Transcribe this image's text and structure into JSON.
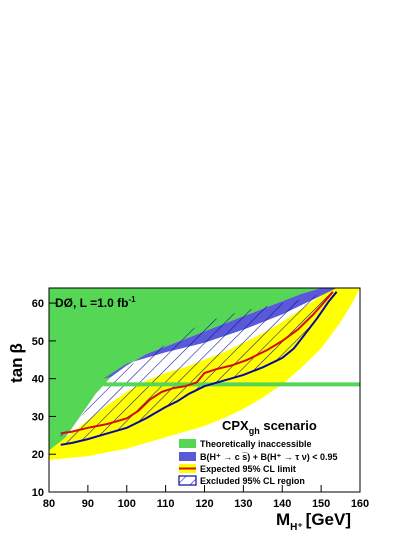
{
  "chart_data": {
    "type": "area",
    "xlabel_main": "M",
    "xlabel_sub": "H⁺",
    "xlabel_unit": "[GeV]",
    "ylabel_main": "tan",
    "ylabel_greek": "β",
    "xlim": [
      80,
      160
    ],
    "ylim": [
      10,
      64
    ],
    "x_ticks": [
      80,
      90,
      100,
      110,
      120,
      130,
      140,
      150,
      160
    ],
    "y_ticks": [
      10,
      20,
      30,
      40,
      50,
      60
    ],
    "annotation_main": "DØ, L =1.0 fb",
    "annotation_sup": "-1",
    "scenario_main": "CPX",
    "scenario_sub": "gh",
    "scenario_rest": " scenario",
    "colors": {
      "theory": "#55d655",
      "branching": "#5a5ad8",
      "yellow": "#ffff00",
      "expected": "#d01010",
      "excluded": "#0a0aa0",
      "hline": "#55d655"
    },
    "legend": [
      {
        "key": "theory",
        "label": "Theoretically inaccessible"
      },
      {
        "key": "branching",
        "label": "B(H⁺ → c s̅) + B(H⁺ → τ ν) < 0.95"
      },
      {
        "key": "expected",
        "label": "Expected 95% CL limit"
      },
      {
        "key": "excluded",
        "label": "Excluded 95% CL region"
      }
    ],
    "theory_region_boundary": [
      [
        80,
        19
      ],
      [
        84,
        24
      ],
      [
        88,
        30
      ],
      [
        92,
        36
      ],
      [
        96,
        40.5
      ],
      [
        100,
        43.5
      ],
      [
        105,
        46.5
      ],
      [
        110,
        48.5
      ],
      [
        115,
        50.5
      ],
      [
        120,
        52.5
      ],
      [
        125,
        54.5
      ],
      [
        130,
        56.5
      ],
      [
        135,
        58.5
      ],
      [
        140,
        60.5
      ],
      [
        145,
        62.5
      ],
      [
        150,
        64
      ]
    ],
    "branching_region_lower": [
      [
        94,
        40
      ],
      [
        100,
        44
      ],
      [
        110,
        47
      ],
      [
        120,
        49.5
      ],
      [
        130,
        53
      ],
      [
        140,
        57
      ],
      [
        150,
        62
      ],
      [
        155,
        64
      ]
    ],
    "yellow_band_upper": [
      [
        80,
        21
      ],
      [
        85,
        25
      ],
      [
        90,
        29
      ],
      [
        95,
        33
      ],
      [
        100,
        36.5
      ],
      [
        105,
        39.5
      ],
      [
        110,
        41.5
      ],
      [
        115,
        43
      ],
      [
        120,
        45
      ],
      [
        125,
        47
      ],
      [
        130,
        49.5
      ],
      [
        135,
        52
      ],
      [
        140,
        55
      ],
      [
        145,
        58.5
      ],
      [
        150,
        62
      ],
      [
        154,
        64
      ]
    ],
    "yellow_band_lower": [
      [
        160,
        64
      ],
      [
        158,
        60
      ],
      [
        155,
        55
      ],
      [
        150,
        48
      ],
      [
        145,
        43
      ],
      [
        140,
        38.5
      ],
      [
        135,
        35
      ],
      [
        130,
        32
      ],
      [
        125,
        29.5
      ],
      [
        120,
        27.5
      ],
      [
        115,
        26
      ],
      [
        110,
        24.5
      ],
      [
        105,
        23
      ],
      [
        100,
        21.5
      ],
      [
        95,
        20.5
      ],
      [
        90,
        19.5
      ],
      [
        85,
        19
      ],
      [
        80,
        18.5
      ]
    ],
    "excluded_region_boundary": [
      [
        83,
        22.5
      ],
      [
        86,
        23
      ],
      [
        90,
        24
      ],
      [
        95,
        25.5
      ],
      [
        100,
        27
      ],
      [
        105,
        29.5
      ],
      [
        110,
        32.5
      ],
      [
        113,
        34
      ],
      [
        116,
        36
      ],
      [
        120,
        38
      ],
      [
        125,
        39.5
      ],
      [
        130,
        41
      ],
      [
        135,
        43
      ],
      [
        140,
        45.5
      ],
      [
        143,
        48
      ],
      [
        146,
        52
      ],
      [
        149,
        56
      ],
      [
        152,
        60.5
      ],
      [
        154,
        63
      ],
      [
        150,
        62.5
      ],
      [
        145,
        61
      ],
      [
        140,
        60
      ],
      [
        135,
        59
      ],
      [
        130,
        58
      ],
      [
        125,
        56.5
      ],
      [
        120,
        55
      ],
      [
        115,
        52
      ],
      [
        110,
        49
      ],
      [
        105,
        46
      ],
      [
        100,
        43
      ],
      [
        95,
        40
      ],
      [
        92,
        36
      ],
      [
        89,
        31
      ],
      [
        86,
        27.5
      ],
      [
        83,
        25
      ]
    ],
    "expected_limit": [
      [
        83,
        25.5
      ],
      [
        86,
        26
      ],
      [
        90,
        27
      ],
      [
        95,
        28
      ],
      [
        100,
        29.5
      ],
      [
        103,
        31.5
      ],
      [
        106,
        34.5
      ],
      [
        109,
        36.5
      ],
      [
        112,
        37.5
      ],
      [
        115,
        38
      ],
      [
        118,
        39
      ],
      [
        120,
        41.5
      ],
      [
        123,
        42.5
      ],
      [
        127,
        43.5
      ],
      [
        131,
        45
      ],
      [
        136,
        47.5
      ],
      [
        140,
        50
      ],
      [
        144,
        53
      ],
      [
        148,
        57
      ],
      [
        151,
        60.5
      ],
      [
        153,
        63
      ]
    ],
    "hline_y": 38.5,
    "hline_xrange": [
      94,
      160
    ]
  }
}
